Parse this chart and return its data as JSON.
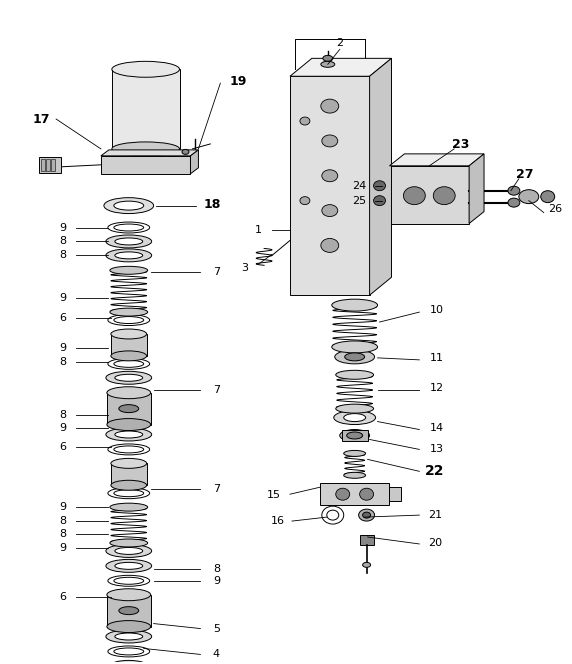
{
  "background_color": "#ffffff",
  "line_color": "#000000",
  "figure_width": 5.72,
  "figure_height": 6.64,
  "dpi": 100
}
